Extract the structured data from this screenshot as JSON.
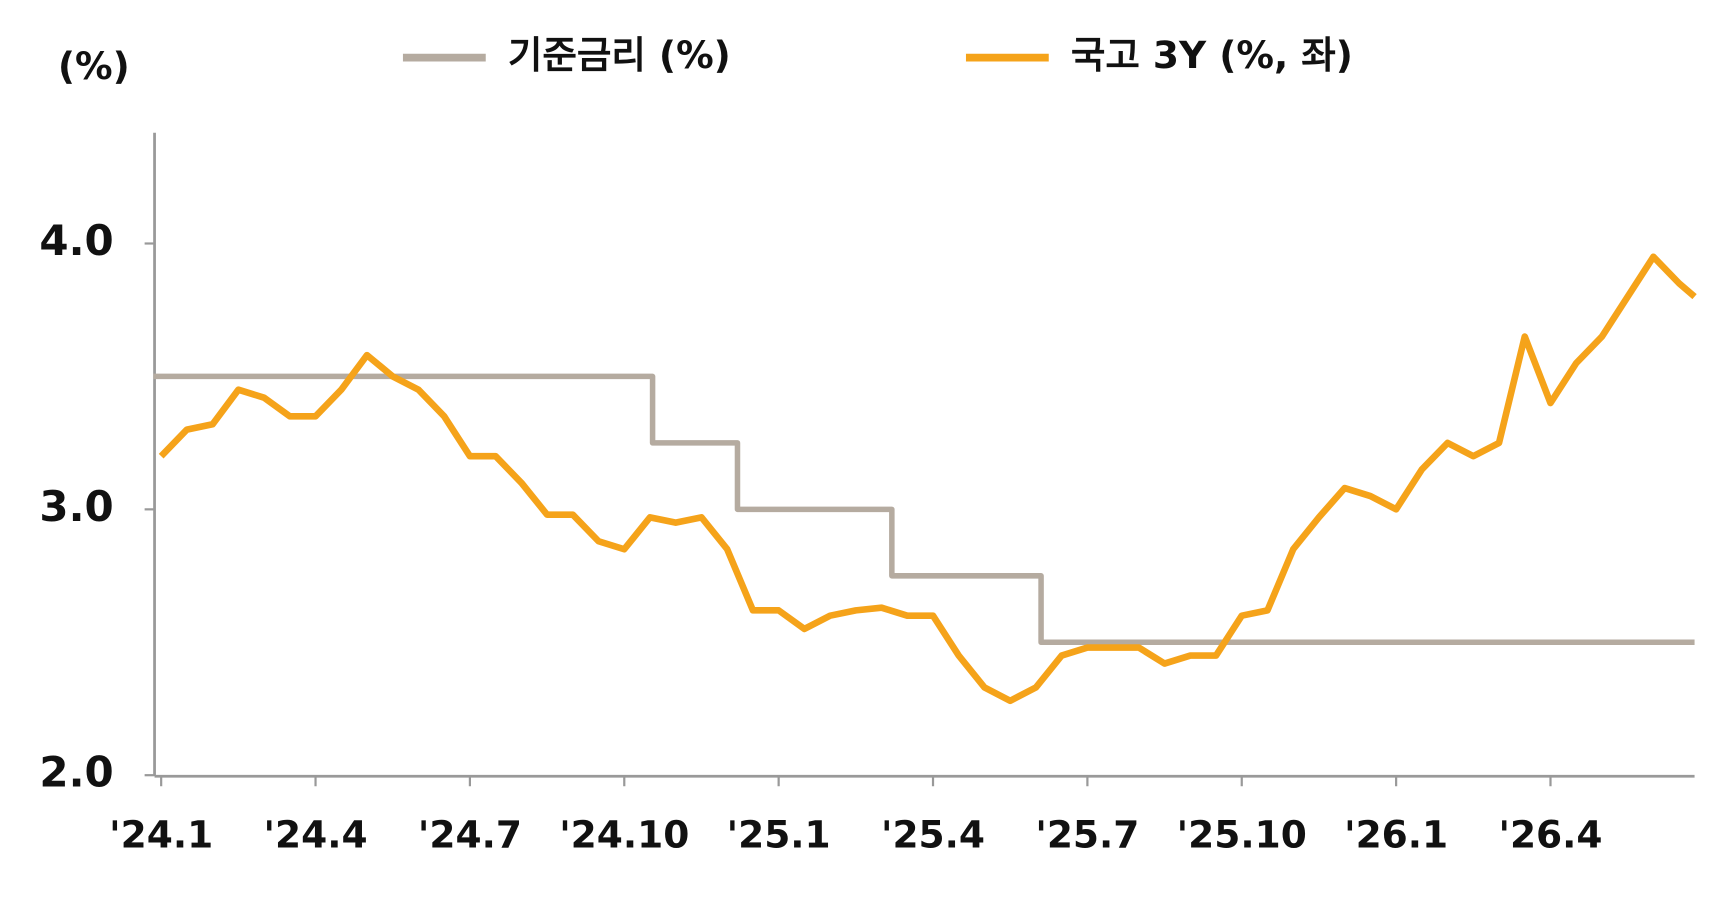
{
  "chart_data": {
    "type": "line",
    "y_unit": "(%)",
    "xlim": [
      -0.15,
      29.8
    ],
    "xticks": [
      {
        "value": 0,
        "label": "'24.1"
      },
      {
        "value": 3,
        "label": "'24.4"
      },
      {
        "value": 6,
        "label": "'24.7"
      },
      {
        "value": 9,
        "label": "'24.10"
      },
      {
        "value": 12,
        "label": "'25.1"
      },
      {
        "value": 15,
        "label": "'25.4"
      },
      {
        "value": 18,
        "label": "'25.7"
      },
      {
        "value": 21,
        "label": "'25.10"
      },
      {
        "value": 24,
        "label": "'26.1"
      },
      {
        "value": 27,
        "label": "'26.4"
      }
    ],
    "ylim": [
      2.0,
      4.45
    ],
    "yticks": [
      {
        "value": 2,
        "label": "2.0"
      },
      {
        "value": 3,
        "label": "3.0"
      },
      {
        "value": 4,
        "label": "4.0"
      }
    ],
    "series": [
      {
        "name": "기준금리 (%)",
        "color": "#b5aba0",
        "x": [
          -0.15,
          9.55,
          9.55,
          11.2,
          11.2,
          14.2,
          14.2,
          17.1,
          17.1,
          29.8
        ],
        "values": [
          3.5,
          3.5,
          3.25,
          3.25,
          3.0,
          3.0,
          2.75,
          2.75,
          2.5,
          2.5
        ]
      },
      {
        "name": "국고 3Y (%, 좌)",
        "color": "#f5a31a",
        "x": [
          0,
          0.5,
          1,
          1.5,
          2,
          2.5,
          3,
          3.5,
          4,
          4.5,
          5,
          5.5,
          6,
          6.5,
          7,
          7.5,
          8,
          8.5,
          9,
          9.5,
          10,
          10.5,
          11,
          11.5,
          12,
          12.5,
          13,
          13.5,
          14,
          14.5,
          15,
          15.5,
          16,
          16.5,
          17,
          17.5,
          18,
          18.5,
          19,
          19.5,
          20,
          20.5,
          21,
          21.5,
          22,
          22.5,
          23,
          23.5,
          24,
          24.5,
          25,
          25.5,
          26,
          26.5,
          27,
          27.5,
          28,
          28.5,
          29,
          29.5,
          29.8
        ],
        "values": [
          3.2,
          3.3,
          3.32,
          3.45,
          3.42,
          3.35,
          3.35,
          3.45,
          3.58,
          3.5,
          3.45,
          3.35,
          3.2,
          3.2,
          3.1,
          2.98,
          2.98,
          2.88,
          2.85,
          2.97,
          2.95,
          2.97,
          2.85,
          2.62,
          2.62,
          2.55,
          2.6,
          2.62,
          2.63,
          2.6,
          2.6,
          2.45,
          2.33,
          2.28,
          2.33,
          2.45,
          2.48,
          2.48,
          2.48,
          2.42,
          2.45,
          2.45,
          2.6,
          2.62,
          2.85,
          2.97,
          3.08,
          3.05,
          3.0,
          3.15,
          3.25,
          3.2,
          3.25,
          3.65,
          3.4,
          3.55,
          3.65,
          3.8,
          3.95,
          3.85,
          3.8
        ]
      }
    ]
  }
}
